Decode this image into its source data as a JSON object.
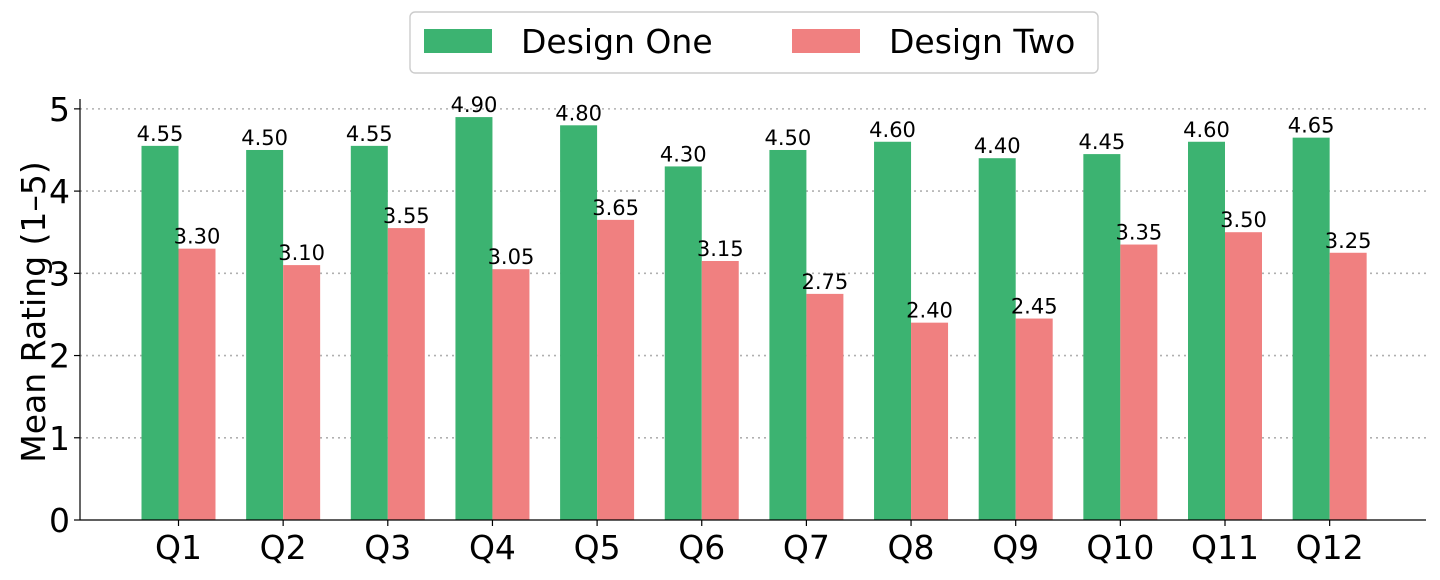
{
  "chart_data": {
    "type": "bar",
    "title": "",
    "xlabel": "",
    "ylabel": "Mean Rating (1–5)",
    "categories": [
      "Q1",
      "Q2",
      "Q3",
      "Q4",
      "Q5",
      "Q6",
      "Q7",
      "Q8",
      "Q9",
      "Q10",
      "Q11",
      "Q12"
    ],
    "series": [
      {
        "name": "Design One",
        "color": "#3cb371",
        "values": [
          4.55,
          4.5,
          4.55,
          4.9,
          4.8,
          4.3,
          4.5,
          4.6,
          4.4,
          4.45,
          4.6,
          4.65
        ],
        "labels": [
          "4.55",
          "4.50",
          "4.55",
          "4.90",
          "4.80",
          "4.30",
          "4.50",
          "4.60",
          "4.40",
          "4.45",
          "4.60",
          "4.65"
        ]
      },
      {
        "name": "Design Two",
        "color": "#f08080",
        "values": [
          3.3,
          3.1,
          3.55,
          3.05,
          3.65,
          3.15,
          2.75,
          2.4,
          2.45,
          3.35,
          3.5,
          3.25
        ],
        "labels": [
          "3.30",
          "3.10",
          "3.55",
          "3.05",
          "3.65",
          "3.15",
          "2.75",
          "2.40",
          "2.45",
          "3.35",
          "3.50",
          "3.25"
        ]
      }
    ],
    "ylim": [
      0,
      5.12
    ],
    "yticks": [
      "0",
      "1",
      "2",
      "3",
      "4",
      "5"
    ],
    "grid": "horizontal dotted",
    "legend_position": "top-center"
  }
}
